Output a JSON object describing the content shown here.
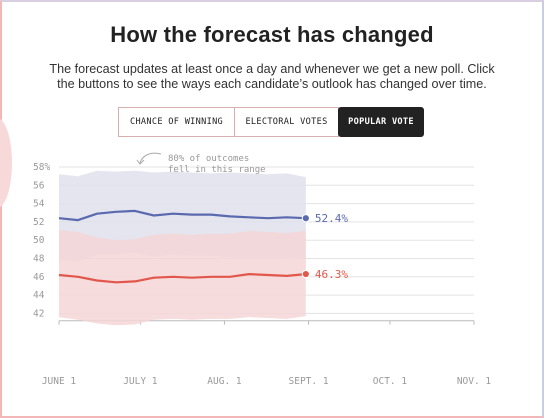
{
  "header": {
    "title": "How the forecast has changed",
    "subtitle_line1": "The forecast updates at least once a day and whenever we get a new poll. Click",
    "subtitle_line2": "the buttons to see the ways each candidate’s outlook has changed over time."
  },
  "buttons": [
    {
      "label": "CHANCE OF WINNING",
      "active": false
    },
    {
      "label": "ELECTORAL VOTES",
      "active": false
    },
    {
      "label": "POPULAR VOTE",
      "active": true
    }
  ],
  "chart_data": {
    "type": "line",
    "title": "",
    "xlabel": "",
    "ylabel": "",
    "ylim": [
      41,
      59
    ],
    "y_ticks": [
      "58%",
      "56",
      "54",
      "52",
      "50",
      "48",
      "46",
      "44",
      "42"
    ],
    "x_ticks": [
      "JUNE 1",
      "JULY 1",
      "AUG. 1",
      "SEPT. 1",
      "OCT. 1",
      "NOV. 1"
    ],
    "x": [
      "2020-06-01",
      "2020-06-08",
      "2020-06-15",
      "2020-06-22",
      "2020-06-29",
      "2020-07-06",
      "2020-07-13",
      "2020-07-20",
      "2020-07-27",
      "2020-08-03",
      "2020-08-10",
      "2020-08-17",
      "2020-08-24",
      "2020-08-31"
    ],
    "annotation": {
      "line1": "80% of outcomes",
      "line2": "fell in this range"
    },
    "grid": true,
    "series": [
      {
        "party": "dem",
        "color": "#5b6aae",
        "band_color": "#dfe1ec",
        "end_label": "52.4%",
        "values": [
          52.4,
          52.2,
          52.9,
          53.1,
          53.2,
          52.7,
          52.9,
          52.8,
          52.8,
          52.6,
          52.5,
          52.4,
          52.5,
          52.4
        ],
        "upper": [
          57.2,
          57.0,
          57.6,
          57.5,
          57.6,
          57.4,
          57.5,
          57.4,
          57.3,
          57.4,
          57.3,
          57.2,
          57.3,
          56.9
        ],
        "lower": [
          47.9,
          47.7,
          48.4,
          48.5,
          48.6,
          48.2,
          48.4,
          48.3,
          48.3,
          48.1,
          48.0,
          48.0,
          48.1,
          48.0
        ]
      },
      {
        "party": "rep",
        "color": "#e2574c",
        "band_color": "#f5d6d6",
        "end_label": "46.3%",
        "values": [
          46.2,
          46.0,
          45.6,
          45.4,
          45.5,
          45.9,
          46.0,
          45.9,
          46.0,
          46.0,
          46.3,
          46.2,
          46.1,
          46.3
        ],
        "upper": [
          51.1,
          50.9,
          50.3,
          50.0,
          50.1,
          50.6,
          50.7,
          50.6,
          50.7,
          50.7,
          51.0,
          50.9,
          50.8,
          51.0
        ],
        "lower": [
          41.6,
          41.3,
          40.9,
          40.7,
          40.8,
          41.3,
          41.4,
          41.3,
          41.4,
          41.4,
          41.6,
          41.5,
          41.4,
          41.7
        ]
      }
    ]
  }
}
